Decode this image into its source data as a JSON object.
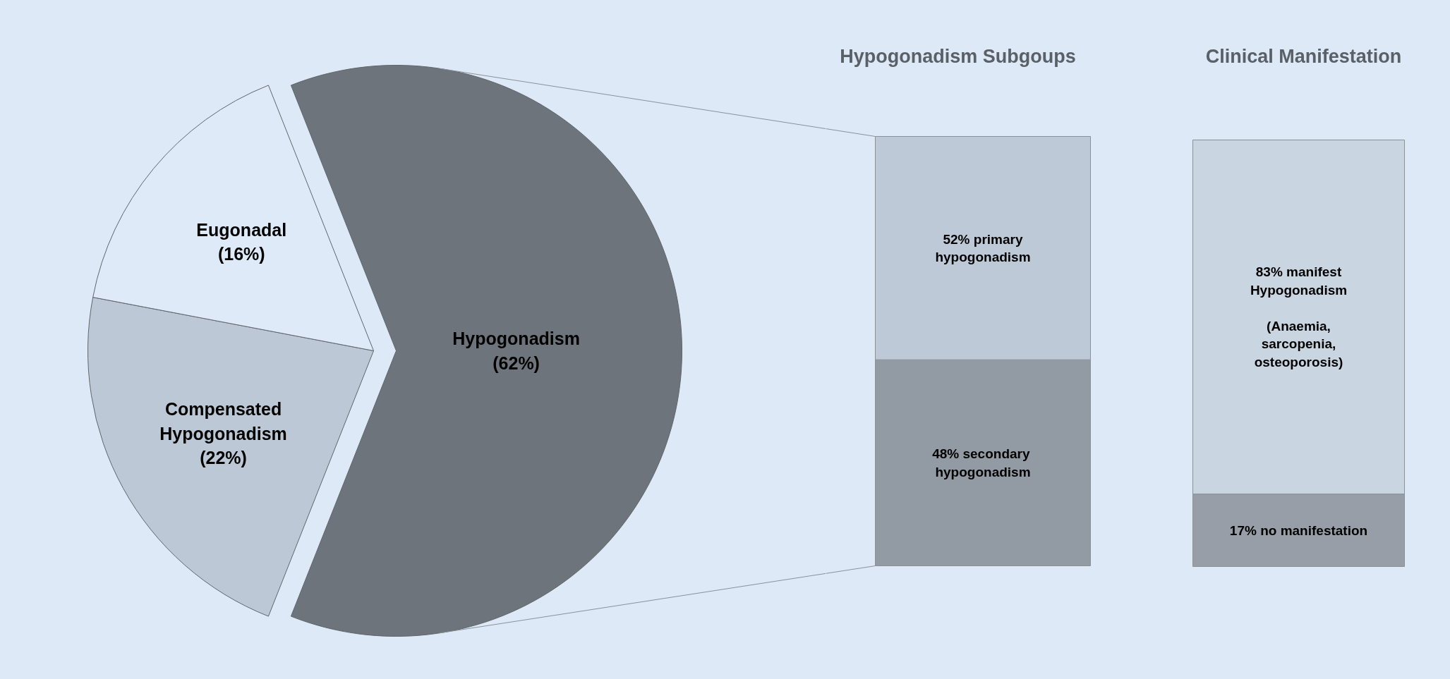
{
  "chart_data": [
    {
      "type": "pie",
      "categories": [
        "Hypogonadism",
        "Compensated\nHypogonadism",
        "Eugonadal"
      ],
      "values": [
        62,
        22,
        16
      ],
      "colors": [
        "#6e747b",
        "#bcc8d5",
        "#deeaf8"
      ],
      "value_labels": [
        "(62%)",
        "(22%)",
        "(16%)"
      ]
    },
    {
      "type": "bar",
      "title": "Hypogonadism Subgoups",
      "stacked": true,
      "categories": [
        null
      ],
      "series": [
        {
          "color": "#929aa4",
          "values": [
            48
          ],
          "value_labels": [
            "48%  secondary\nhypogonadism"
          ]
        },
        {
          "color": "#bdc9d6",
          "values": [
            52
          ],
          "value_labels": [
            "52% primary\nhypogonadism"
          ]
        }
      ]
    },
    {
      "type": "bar",
      "title": "Clinical Manifestation",
      "stacked": true,
      "categories": [
        null
      ],
      "series": [
        {
          "color": "#979ea7",
          "values": [
            17
          ],
          "value_labels": [
            "17% no manifestation"
          ]
        },
        {
          "color": "#c9d5e1",
          "values": [
            83
          ],
          "value_labels": [
            "83% manifest\nHypogonadism\n\n(Anaemia,\nsarcopenia,\nosteoporosis)"
          ]
        }
      ]
    }
  ]
}
